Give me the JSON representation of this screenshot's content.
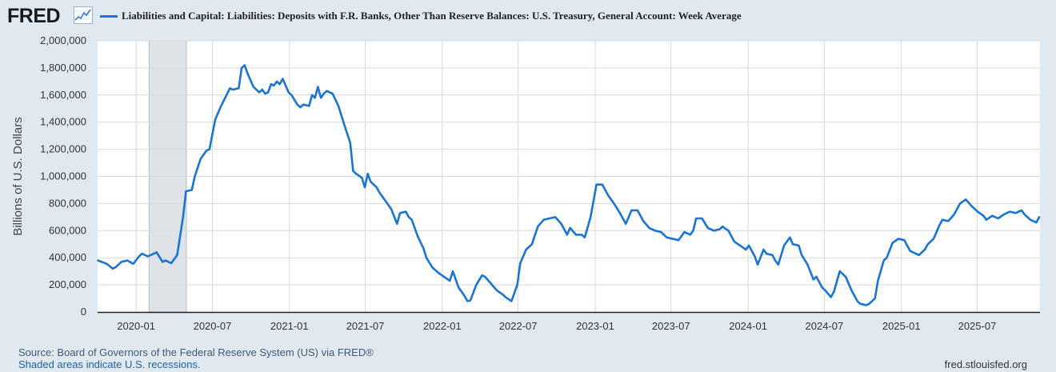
{
  "header": {
    "logo_text": "FRED",
    "logo_icon": "trend-line-icon",
    "series_title": "Liabilities and Capital: Liabilities: Deposits with F.R. Banks, Other Than Reserve Balances: U.S. Treasury, General Account: Week Average"
  },
  "footer": {
    "source": "Source: Board of Governors of the Federal Reserve System (US) via FRED®",
    "recession_note": "Shaded areas indicate U.S. recessions.",
    "site": "fred.stlouisfed.org"
  },
  "chart_data": {
    "type": "line",
    "ylabel": "Billions of U.S. Dollars",
    "ylim": [
      0,
      2000000
    ],
    "yticks": [
      0,
      200000,
      400000,
      600000,
      800000,
      1000000,
      1200000,
      1400000,
      1600000,
      1800000,
      2000000
    ],
    "ytick_labels": [
      "0",
      "200,000",
      "400,000",
      "600,000",
      "800,000",
      "1,000,000",
      "1,200,000",
      "1,400,000",
      "1,600,000",
      "1,800,000",
      "2,000,000"
    ],
    "xlim": [
      "2019-10-01",
      "2025-11-28"
    ],
    "xticks": [
      "2020-01-01",
      "2020-07-01",
      "2021-01-01",
      "2021-07-01",
      "2022-01-01",
      "2022-07-01",
      "2023-01-01",
      "2023-07-01",
      "2024-01-01",
      "2024-07-01",
      "2025-01-01",
      "2025-07-01"
    ],
    "xtick_labels": [
      "2020-01",
      "2020-07",
      "2021-01",
      "2021-07",
      "2022-01",
      "2022-07",
      "2023-01",
      "2023-07",
      "2024-01",
      "2024-07",
      "2025-01",
      "2025-07"
    ],
    "grid": true,
    "recessions": [
      {
        "start": "2020-02-01",
        "end": "2020-04-30"
      }
    ],
    "colors": {
      "line": "#1a74d1",
      "grid": "#d9d9d9",
      "recession": "#dfe3e8",
      "plot_bg": "#ffffff"
    },
    "series": [
      {
        "name": "Liabilities and Capital: Liabilities: Deposits with F.R. Banks, Other Than Reserve Balances: U.S. Treasury, General Account: Week Average",
        "points": [
          [
            "2019-10-02",
            380000
          ],
          [
            "2019-10-23",
            355000
          ],
          [
            "2019-11-06",
            320000
          ],
          [
            "2019-11-13",
            330000
          ],
          [
            "2019-11-27",
            370000
          ],
          [
            "2019-12-11",
            380000
          ],
          [
            "2019-12-25",
            355000
          ],
          [
            "2020-01-08",
            410000
          ],
          [
            "2020-01-15",
            430000
          ],
          [
            "2020-01-29",
            410000
          ],
          [
            "2020-02-12",
            430000
          ],
          [
            "2020-02-19",
            440000
          ],
          [
            "2020-03-04",
            370000
          ],
          [
            "2020-03-11",
            380000
          ],
          [
            "2020-03-25",
            360000
          ],
          [
            "2020-04-08",
            420000
          ],
          [
            "2020-04-22",
            700000
          ],
          [
            "2020-04-29",
            890000
          ],
          [
            "2020-05-13",
            900000
          ],
          [
            "2020-05-20",
            1000000
          ],
          [
            "2020-06-03",
            1130000
          ],
          [
            "2020-06-17",
            1190000
          ],
          [
            "2020-06-24",
            1200000
          ],
          [
            "2020-07-08",
            1420000
          ],
          [
            "2020-07-22",
            1520000
          ],
          [
            "2020-08-12",
            1650000
          ],
          [
            "2020-08-19",
            1640000
          ],
          [
            "2020-09-02",
            1650000
          ],
          [
            "2020-09-09",
            1800000
          ],
          [
            "2020-09-16",
            1820000
          ],
          [
            "2020-09-23",
            1760000
          ],
          [
            "2020-10-07",
            1660000
          ],
          [
            "2020-10-21",
            1620000
          ],
          [
            "2020-10-28",
            1640000
          ],
          [
            "2020-11-04",
            1610000
          ],
          [
            "2020-11-11",
            1620000
          ],
          [
            "2020-11-18",
            1680000
          ],
          [
            "2020-11-25",
            1670000
          ],
          [
            "2020-12-02",
            1700000
          ],
          [
            "2020-12-09",
            1680000
          ],
          [
            "2020-12-16",
            1720000
          ],
          [
            "2020-12-30",
            1620000
          ],
          [
            "2021-01-06",
            1600000
          ],
          [
            "2021-01-20",
            1530000
          ],
          [
            "2021-01-27",
            1510000
          ],
          [
            "2021-02-03",
            1530000
          ],
          [
            "2021-02-17",
            1520000
          ],
          [
            "2021-02-24",
            1600000
          ],
          [
            "2021-03-03",
            1580000
          ],
          [
            "2021-03-10",
            1660000
          ],
          [
            "2021-03-17",
            1580000
          ],
          [
            "2021-03-24",
            1610000
          ],
          [
            "2021-03-31",
            1630000
          ],
          [
            "2021-04-14",
            1610000
          ],
          [
            "2021-04-28",
            1520000
          ],
          [
            "2021-05-12",
            1380000
          ],
          [
            "2021-05-26",
            1250000
          ],
          [
            "2021-06-02",
            1040000
          ],
          [
            "2021-06-09",
            1020000
          ],
          [
            "2021-06-23",
            990000
          ],
          [
            "2021-06-30",
            920000
          ],
          [
            "2021-07-07",
            1020000
          ],
          [
            "2021-07-14",
            960000
          ],
          [
            "2021-07-28",
            920000
          ],
          [
            "2021-08-04",
            880000
          ],
          [
            "2021-08-18",
            820000
          ],
          [
            "2021-09-01",
            760000
          ],
          [
            "2021-09-15",
            650000
          ],
          [
            "2021-09-22",
            730000
          ],
          [
            "2021-10-06",
            740000
          ],
          [
            "2021-10-13",
            700000
          ],
          [
            "2021-10-20",
            680000
          ],
          [
            "2021-11-03",
            560000
          ],
          [
            "2021-11-17",
            470000
          ],
          [
            "2021-11-24",
            400000
          ],
          [
            "2021-12-08",
            330000
          ],
          [
            "2021-12-22",
            290000
          ],
          [
            "2022-01-05",
            260000
          ],
          [
            "2022-01-19",
            230000
          ],
          [
            "2022-01-26",
            300000
          ],
          [
            "2022-02-09",
            180000
          ],
          [
            "2022-02-23",
            120000
          ],
          [
            "2022-03-02",
            80000
          ],
          [
            "2022-03-09",
            85000
          ],
          [
            "2022-03-23",
            200000
          ],
          [
            "2022-04-06",
            270000
          ],
          [
            "2022-04-13",
            260000
          ],
          [
            "2022-04-27",
            210000
          ],
          [
            "2022-05-11",
            160000
          ],
          [
            "2022-05-25",
            130000
          ],
          [
            "2022-06-01",
            110000
          ],
          [
            "2022-06-15",
            80000
          ],
          [
            "2022-06-29",
            200000
          ],
          [
            "2022-07-06",
            360000
          ],
          [
            "2022-07-20",
            460000
          ],
          [
            "2022-08-03",
            500000
          ],
          [
            "2022-08-17",
            630000
          ],
          [
            "2022-08-31",
            680000
          ],
          [
            "2022-09-14",
            690000
          ],
          [
            "2022-09-28",
            700000
          ],
          [
            "2022-10-12",
            650000
          ],
          [
            "2022-10-26",
            570000
          ],
          [
            "2022-11-02",
            620000
          ],
          [
            "2022-11-16",
            570000
          ],
          [
            "2022-11-30",
            570000
          ],
          [
            "2022-12-07",
            550000
          ],
          [
            "2022-12-21",
            700000
          ],
          [
            "2023-01-04",
            940000
          ],
          [
            "2023-01-18",
            940000
          ],
          [
            "2023-02-01",
            860000
          ],
          [
            "2023-02-15",
            800000
          ],
          [
            "2023-03-01",
            730000
          ],
          [
            "2023-03-15",
            650000
          ],
          [
            "2023-03-29",
            750000
          ],
          [
            "2023-04-12",
            750000
          ],
          [
            "2023-04-26",
            670000
          ],
          [
            "2023-05-10",
            620000
          ],
          [
            "2023-05-24",
            600000
          ],
          [
            "2023-06-07",
            590000
          ],
          [
            "2023-06-21",
            550000
          ],
          [
            "2023-07-05",
            540000
          ],
          [
            "2023-07-19",
            530000
          ],
          [
            "2023-08-02",
            590000
          ],
          [
            "2023-08-16",
            570000
          ],
          [
            "2023-08-23",
            600000
          ],
          [
            "2023-08-30",
            690000
          ],
          [
            "2023-09-13",
            690000
          ],
          [
            "2023-09-27",
            620000
          ],
          [
            "2023-10-11",
            600000
          ],
          [
            "2023-10-25",
            610000
          ],
          [
            "2023-11-01",
            630000
          ],
          [
            "2023-11-15",
            600000
          ],
          [
            "2023-11-29",
            520000
          ],
          [
            "2023-12-13",
            490000
          ],
          [
            "2023-12-27",
            460000
          ],
          [
            "2024-01-03",
            490000
          ],
          [
            "2024-01-17",
            410000
          ],
          [
            "2024-01-24",
            350000
          ],
          [
            "2024-02-07",
            460000
          ],
          [
            "2024-02-14",
            430000
          ],
          [
            "2024-02-28",
            420000
          ],
          [
            "2024-03-06",
            380000
          ],
          [
            "2024-03-13",
            350000
          ],
          [
            "2024-03-27",
            490000
          ],
          [
            "2024-04-10",
            550000
          ],
          [
            "2024-04-17",
            500000
          ],
          [
            "2024-05-01",
            490000
          ],
          [
            "2024-05-08",
            420000
          ],
          [
            "2024-05-22",
            350000
          ],
          [
            "2024-06-05",
            240000
          ],
          [
            "2024-06-12",
            260000
          ],
          [
            "2024-06-26",
            180000
          ],
          [
            "2024-07-03",
            160000
          ],
          [
            "2024-07-17",
            110000
          ],
          [
            "2024-07-24",
            150000
          ],
          [
            "2024-08-07",
            300000
          ],
          [
            "2024-08-21",
            260000
          ],
          [
            "2024-09-04",
            160000
          ],
          [
            "2024-09-18",
            80000
          ],
          [
            "2024-09-25",
            60000
          ],
          [
            "2024-10-09",
            50000
          ],
          [
            "2024-10-16",
            60000
          ],
          [
            "2024-10-30",
            100000
          ],
          [
            "2024-11-06",
            230000
          ],
          [
            "2024-11-20",
            380000
          ],
          [
            "2024-11-27",
            400000
          ],
          [
            "2024-12-11",
            510000
          ],
          [
            "2024-12-25",
            540000
          ],
          [
            "2025-01-08",
            530000
          ],
          [
            "2025-01-22",
            450000
          ],
          [
            "2025-01-29",
            440000
          ],
          [
            "2025-02-12",
            420000
          ],
          [
            "2025-02-26",
            460000
          ],
          [
            "2025-03-05",
            500000
          ],
          [
            "2025-03-19",
            540000
          ],
          [
            "2025-04-02",
            640000
          ],
          [
            "2025-04-09",
            680000
          ],
          [
            "2025-04-23",
            670000
          ],
          [
            "2025-05-07",
            720000
          ],
          [
            "2025-05-21",
            800000
          ],
          [
            "2025-06-04",
            830000
          ],
          [
            "2025-06-18",
            780000
          ],
          [
            "2025-07-02",
            740000
          ],
          [
            "2025-07-16",
            710000
          ],
          [
            "2025-07-23",
            680000
          ],
          [
            "2025-08-06",
            710000
          ],
          [
            "2025-08-20",
            690000
          ],
          [
            "2025-09-03",
            720000
          ],
          [
            "2025-09-17",
            740000
          ],
          [
            "2025-10-01",
            730000
          ],
          [
            "2025-10-15",
            750000
          ],
          [
            "2025-10-22",
            720000
          ],
          [
            "2025-11-05",
            680000
          ],
          [
            "2025-11-19",
            660000
          ],
          [
            "2025-11-26",
            700000
          ]
        ]
      }
    ]
  }
}
